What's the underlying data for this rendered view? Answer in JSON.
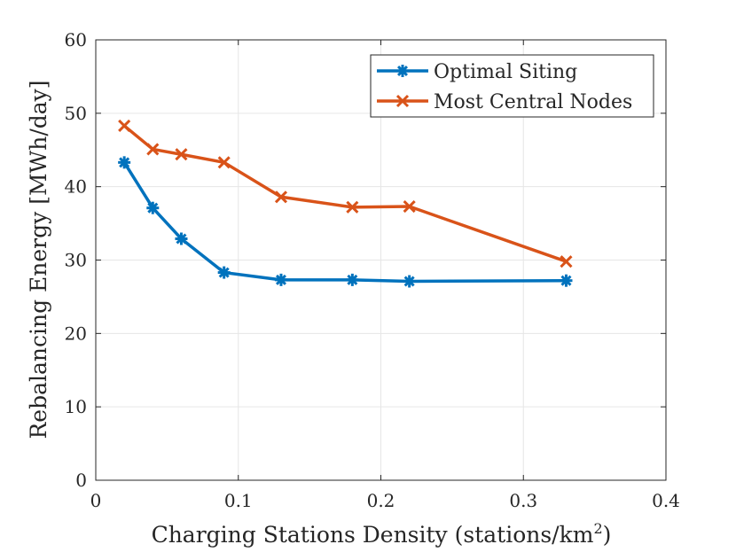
{
  "chart_data": {
    "type": "line",
    "title": "",
    "xlabel": "Charging Stations Density (stations/km",
    "xlabel_superscript": "2",
    "xlabel_suffix": ")",
    "ylabel": "Rebalancing Energy [MWh/day]",
    "xlim": [
      0,
      0.4
    ],
    "ylim": [
      0,
      60
    ],
    "xticks": [
      0,
      0.1,
      0.2,
      0.3,
      0.4
    ],
    "xtick_labels": [
      "0",
      "0.1",
      "0.2",
      "0.3",
      "0.4"
    ],
    "yticks": [
      0,
      10,
      20,
      30,
      40,
      50,
      60
    ],
    "ytick_labels": [
      "0",
      "10",
      "20",
      "30",
      "40",
      "50",
      "60"
    ],
    "grid": true,
    "legend_position": "top-right",
    "series": [
      {
        "name": "Optimal Siting",
        "color": "#0072BD",
        "marker": "asterisk",
        "x": [
          0.02,
          0.04,
          0.06,
          0.09,
          0.13,
          0.18,
          0.22,
          0.33
        ],
        "y": [
          43.3,
          37.1,
          32.9,
          28.3,
          27.3,
          27.3,
          27.1,
          27.2
        ]
      },
      {
        "name": "Most Central Nodes",
        "color": "#D95319",
        "marker": "x",
        "x": [
          0.02,
          0.04,
          0.06,
          0.09,
          0.13,
          0.18,
          0.22,
          0.33
        ],
        "y": [
          48.3,
          45.1,
          44.4,
          43.3,
          38.6,
          37.2,
          37.3,
          29.8
        ]
      }
    ]
  }
}
